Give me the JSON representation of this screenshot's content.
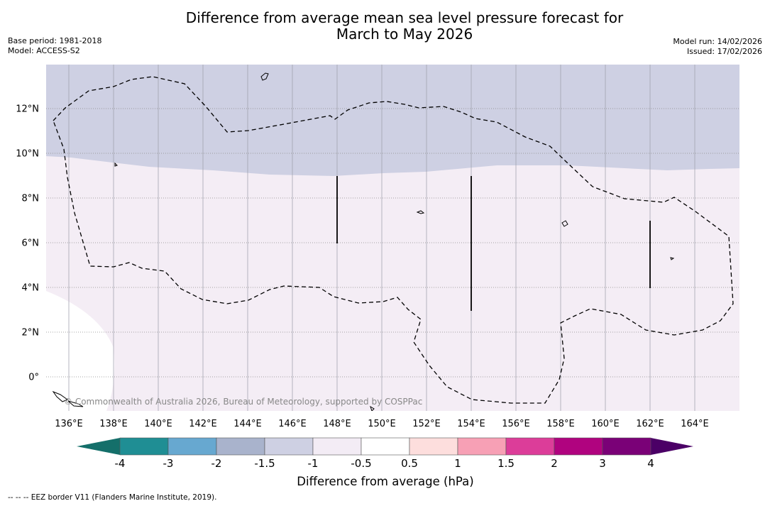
{
  "header": {
    "title_line1": "Difference from average mean sea level pressure forecast for",
    "title_line2": "March to May 2026",
    "base_period": "Base period: 1981-2018",
    "model": "Model: ACCESS-S2",
    "model_run": "Model run: 14/02/2026",
    "issued": "Issued: 17/02/2026"
  },
  "map": {
    "lon_labels": [
      "136°E",
      "138°E",
      "140°E",
      "142°E",
      "144°E",
      "146°E",
      "148°E",
      "150°E",
      "152°E",
      "154°E",
      "156°E",
      "158°E",
      "160°E",
      "162°E",
      "164°E"
    ],
    "lat_labels": [
      "12°N",
      "10°N",
      "8°N",
      "6°N",
      "4°N",
      "2°N",
      "0°"
    ],
    "copyright": "© Commonwealth of Australia 2026, Bureau of Meteorology, supported by COSPPac"
  },
  "colorbar": {
    "ticks": [
      "-4",
      "-3",
      "-2",
      "-1.5",
      "-1",
      "-0.5",
      "0.5",
      "1",
      "1.5",
      "2",
      "3",
      "4"
    ],
    "colors": [
      "#1f8e94",
      "#67a8d0",
      "#a9b3cc",
      "#ced0e3",
      "#f3ecf5",
      "#ffffff",
      "#fddedd",
      "#f7a0b5",
      "#dc3d99",
      "#b0037f",
      "#7a0177"
    ],
    "under_color": "#146f6a",
    "over_color": "#4b0066",
    "label": "Difference from average (hPa)"
  },
  "footer": {
    "legend_text": "-- -- -- EEZ border V11 (Flanders Marine Institute, 2019)."
  }
}
